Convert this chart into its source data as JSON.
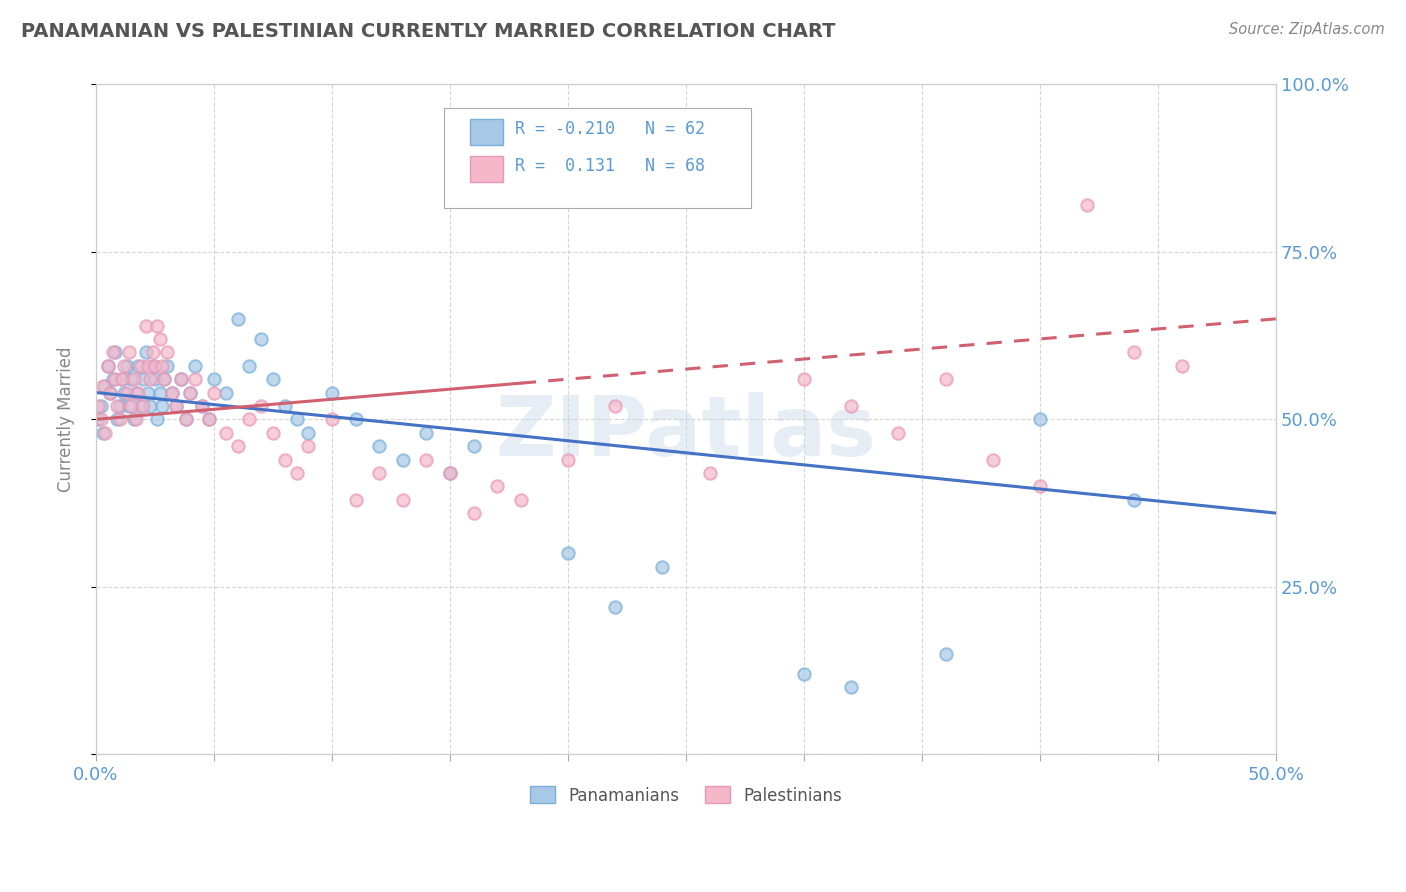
{
  "title": "PANAMANIAN VS PALESTINIAN CURRENTLY MARRIED CORRELATION CHART",
  "source": "Source: ZipAtlas.com",
  "ylabel": "Currently Married",
  "blue_R": -0.21,
  "blue_N": 62,
  "pink_R": 0.131,
  "pink_N": 68,
  "blue_color": "#a8c8e8",
  "blue_edge": "#7ab0d8",
  "pink_color": "#f4b8c8",
  "pink_edge": "#e898b8",
  "trend_blue": "#4472c4",
  "trend_pink": "#d06070",
  "background_color": "#ffffff",
  "grid_color": "#cccccc",
  "title_fontsize": 14,
  "watermark": "ZIPatlas",
  "xlim": [
    0.0,
    0.5
  ],
  "ylim": [
    0.0,
    1.0
  ],
  "blue_scatter_x": [
    0.001,
    0.002,
    0.003,
    0.004,
    0.005,
    0.006,
    0.007,
    0.008,
    0.009,
    0.01,
    0.011,
    0.012,
    0.013,
    0.014,
    0.015,
    0.016,
    0.017,
    0.018,
    0.019,
    0.02,
    0.021,
    0.022,
    0.023,
    0.024,
    0.025,
    0.026,
    0.027,
    0.028,
    0.029,
    0.03,
    0.032,
    0.034,
    0.036,
    0.038,
    0.04,
    0.042,
    0.045,
    0.048,
    0.05,
    0.055,
    0.06,
    0.065,
    0.07,
    0.075,
    0.08,
    0.085,
    0.09,
    0.1,
    0.11,
    0.12,
    0.13,
    0.14,
    0.15,
    0.16,
    0.2,
    0.22,
    0.24,
    0.3,
    0.32,
    0.36,
    0.4,
    0.44
  ],
  "blue_scatter_y": [
    0.5,
    0.52,
    0.48,
    0.55,
    0.58,
    0.54,
    0.56,
    0.6,
    0.5,
    0.52,
    0.56,
    0.54,
    0.58,
    0.52,
    0.56,
    0.5,
    0.54,
    0.58,
    0.52,
    0.56,
    0.6,
    0.54,
    0.52,
    0.58,
    0.56,
    0.5,
    0.54,
    0.52,
    0.56,
    0.58,
    0.54,
    0.52,
    0.56,
    0.5,
    0.54,
    0.58,
    0.52,
    0.5,
    0.56,
    0.54,
    0.65,
    0.58,
    0.62,
    0.56,
    0.52,
    0.5,
    0.48,
    0.54,
    0.5,
    0.46,
    0.44,
    0.48,
    0.42,
    0.46,
    0.3,
    0.22,
    0.28,
    0.12,
    0.1,
    0.15,
    0.5,
    0.38
  ],
  "pink_scatter_x": [
    0.001,
    0.002,
    0.003,
    0.004,
    0.005,
    0.006,
    0.007,
    0.008,
    0.009,
    0.01,
    0.011,
    0.012,
    0.013,
    0.014,
    0.015,
    0.016,
    0.017,
    0.018,
    0.019,
    0.02,
    0.021,
    0.022,
    0.023,
    0.024,
    0.025,
    0.026,
    0.027,
    0.028,
    0.029,
    0.03,
    0.032,
    0.034,
    0.036,
    0.038,
    0.04,
    0.042,
    0.045,
    0.048,
    0.05,
    0.055,
    0.06,
    0.065,
    0.07,
    0.075,
    0.08,
    0.085,
    0.09,
    0.1,
    0.11,
    0.12,
    0.13,
    0.14,
    0.15,
    0.16,
    0.17,
    0.18,
    0.2,
    0.22,
    0.26,
    0.3,
    0.32,
    0.34,
    0.36,
    0.38,
    0.4,
    0.42,
    0.44,
    0.46
  ],
  "pink_scatter_y": [
    0.52,
    0.5,
    0.55,
    0.48,
    0.58,
    0.54,
    0.6,
    0.56,
    0.52,
    0.5,
    0.56,
    0.58,
    0.54,
    0.6,
    0.52,
    0.56,
    0.5,
    0.54,
    0.58,
    0.52,
    0.64,
    0.58,
    0.56,
    0.6,
    0.58,
    0.64,
    0.62,
    0.58,
    0.56,
    0.6,
    0.54,
    0.52,
    0.56,
    0.5,
    0.54,
    0.56,
    0.52,
    0.5,
    0.54,
    0.48,
    0.46,
    0.5,
    0.52,
    0.48,
    0.44,
    0.42,
    0.46,
    0.5,
    0.38,
    0.42,
    0.38,
    0.44,
    0.42,
    0.36,
    0.4,
    0.38,
    0.44,
    0.52,
    0.42,
    0.56,
    0.52,
    0.48,
    0.56,
    0.44,
    0.4,
    0.82,
    0.6,
    0.58
  ],
  "blue_trend_x0": 0.0,
  "blue_trend_y0": 0.54,
  "blue_trend_x1": 0.5,
  "blue_trend_y1": 0.36,
  "pink_trend_x0": 0.0,
  "pink_trend_y0": 0.5,
  "pink_trend_x1": 0.5,
  "pink_trend_y1": 0.65
}
